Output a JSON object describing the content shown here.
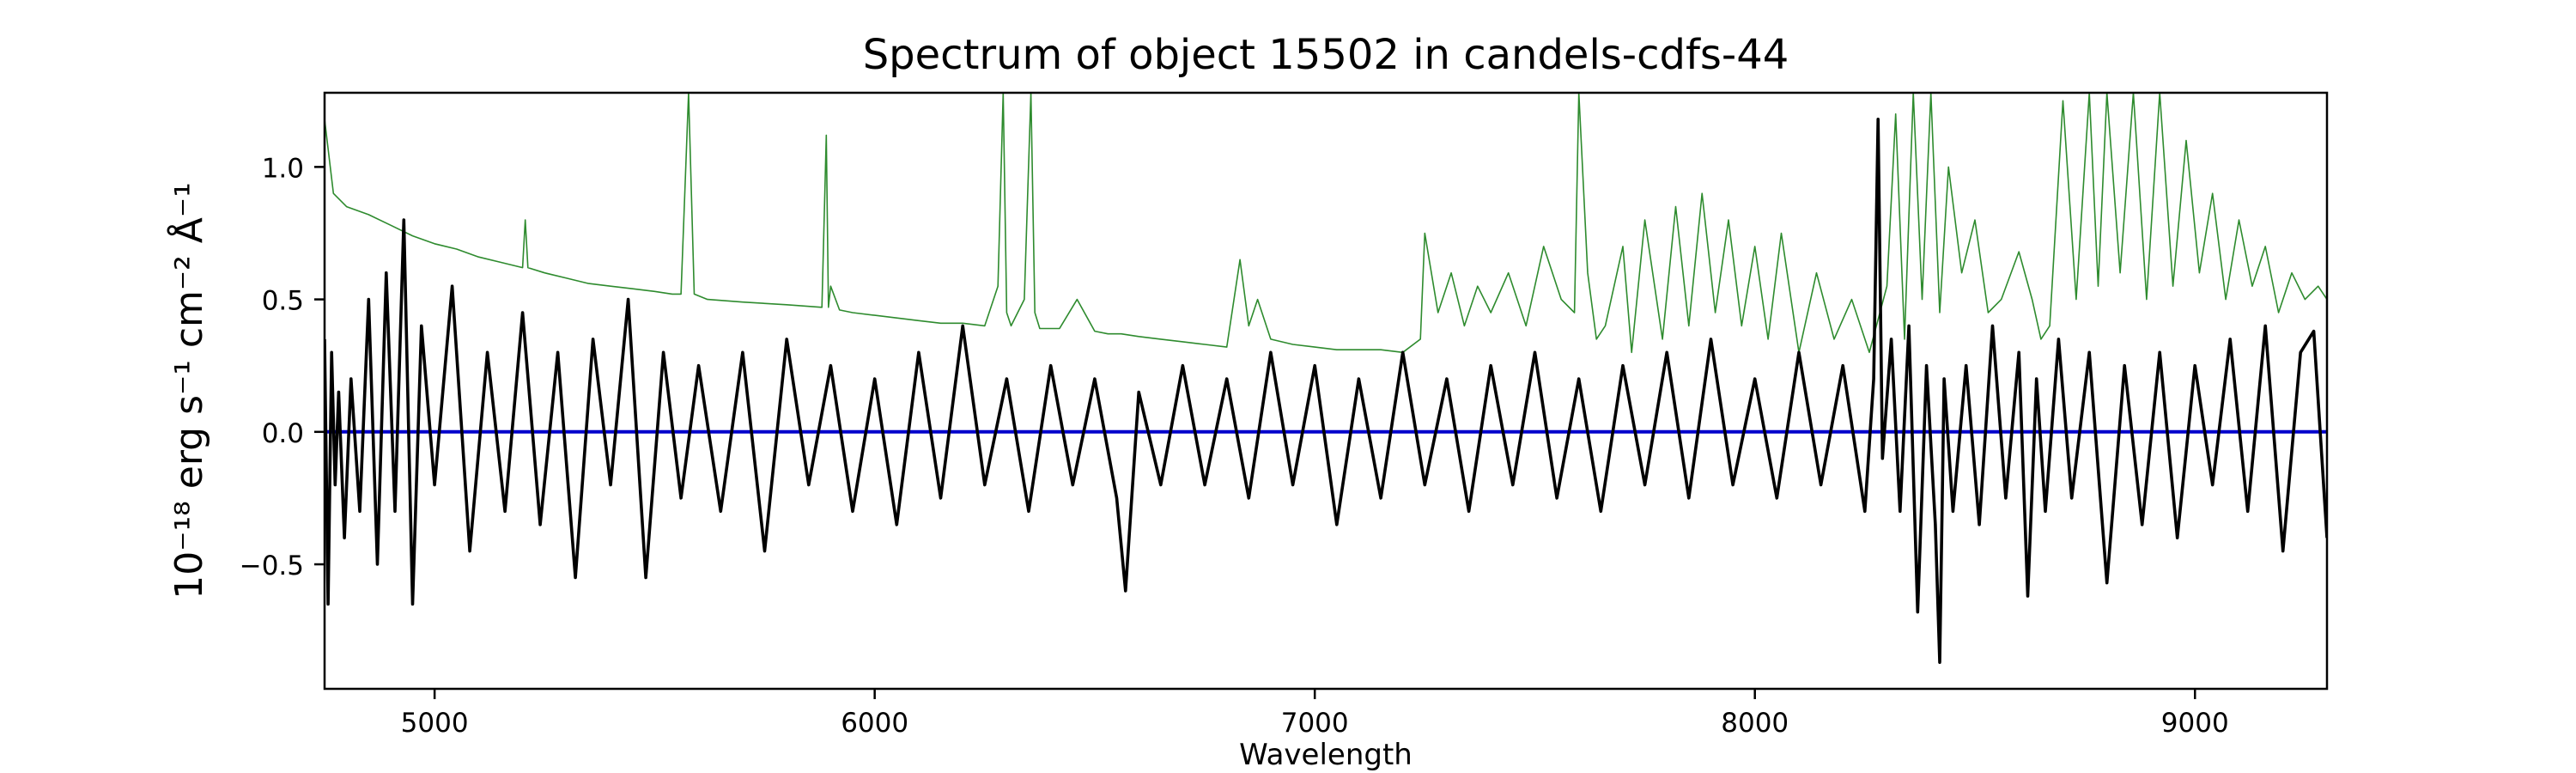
{
  "chart_data": {
    "type": "line",
    "title": "Spectrum of object 15502 in candels-cdfs-44",
    "xlabel": "Wavelength",
    "ylabel": "10⁻¹⁸ erg s⁻¹ cm⁻² Å⁻¹",
    "xlim": [
      4750,
      9300
    ],
    "ylim": [
      -0.97,
      1.28
    ],
    "x_ticks": [
      5000,
      6000,
      7000,
      8000,
      9000
    ],
    "x_tick_labels": [
      "5000",
      "6000",
      "7000",
      "8000",
      "9000"
    ],
    "y_ticks": [
      -0.5,
      0.0,
      0.5,
      1.0
    ],
    "y_tick_labels": [
      "−0.5",
      "0.0",
      "0.5",
      "1.0"
    ],
    "grid": false,
    "series": [
      {
        "role": "contamination",
        "color": "#2e8b2e",
        "x": [
          4750,
          4770,
          4800,
          4850,
          4900,
          4950,
          5000,
          5050,
          5100,
          5150,
          5200,
          5206,
          5212,
          5250,
          5300,
          5350,
          5400,
          5450,
          5500,
          5540,
          5560,
          5577,
          5590,
          5620,
          5700,
          5800,
          5880,
          5890,
          5895,
          5900,
          5920,
          5950,
          6000,
          6050,
          6100,
          6150,
          6200,
          6250,
          6280,
          6292,
          6300,
          6310,
          6340,
          6355,
          6364,
          6375,
          6420,
          6460,
          6500,
          6530,
          6560,
          6600,
          6650,
          6700,
          6750,
          6800,
          6830,
          6850,
          6870,
          6900,
          6950,
          7000,
          7050,
          7100,
          7150,
          7200,
          7240,
          7250,
          7280,
          7310,
          7340,
          7370,
          7400,
          7440,
          7480,
          7520,
          7560,
          7590,
          7600,
          7620,
          7640,
          7660,
          7700,
          7720,
          7750,
          7790,
          7820,
          7850,
          7880,
          7910,
          7940,
          7970,
          8000,
          8030,
          8060,
          8100,
          8140,
          8180,
          8220,
          8260,
          8300,
          8320,
          8340,
          8360,
          8380,
          8400,
          8420,
          8440,
          8470,
          8500,
          8530,
          8560,
          8600,
          8630,
          8650,
          8670,
          8700,
          8730,
          8760,
          8780,
          8800,
          8830,
          8860,
          8890,
          8920,
          8950,
          8980,
          9010,
          9040,
          9070,
          9100,
          9130,
          9160,
          9190,
          9220,
          9250,
          9280,
          9300
        ],
        "y": [
          1.18,
          0.9,
          0.85,
          0.82,
          0.78,
          0.74,
          0.71,
          0.69,
          0.66,
          0.64,
          0.62,
          0.8,
          0.62,
          0.6,
          0.58,
          0.56,
          0.55,
          0.54,
          0.53,
          0.52,
          0.52,
          1.28,
          0.52,
          0.5,
          0.49,
          0.48,
          0.47,
          1.12,
          0.47,
          0.55,
          0.46,
          0.45,
          0.44,
          0.43,
          0.42,
          0.41,
          0.41,
          0.4,
          0.55,
          1.28,
          0.45,
          0.4,
          0.5,
          1.28,
          0.45,
          0.39,
          0.39,
          0.5,
          0.38,
          0.37,
          0.37,
          0.36,
          0.35,
          0.34,
          0.33,
          0.32,
          0.65,
          0.4,
          0.5,
          0.35,
          0.33,
          0.32,
          0.31,
          0.31,
          0.31,
          0.3,
          0.35,
          0.75,
          0.45,
          0.6,
          0.4,
          0.55,
          0.45,
          0.6,
          0.4,
          0.7,
          0.5,
          0.45,
          1.28,
          0.6,
          0.35,
          0.4,
          0.7,
          0.3,
          0.8,
          0.35,
          0.85,
          0.4,
          0.9,
          0.45,
          0.8,
          0.4,
          0.7,
          0.35,
          0.75,
          0.3,
          0.6,
          0.35,
          0.5,
          0.3,
          0.55,
          1.2,
          0.35,
          1.28,
          0.5,
          1.28,
          0.45,
          1.0,
          0.6,
          0.8,
          0.45,
          0.5,
          0.68,
          0.5,
          0.35,
          0.4,
          1.25,
          0.5,
          1.28,
          0.55,
          1.28,
          0.6,
          1.28,
          0.5,
          1.28,
          0.55,
          1.1,
          0.6,
          0.9,
          0.5,
          0.8,
          0.55,
          0.7,
          0.45,
          0.6,
          0.5,
          0.55,
          0.5
        ]
      },
      {
        "role": "model",
        "color": "#0000cc",
        "x": [
          4750,
          9300
        ],
        "y": [
          0.0,
          0.0
        ]
      },
      {
        "role": "data",
        "color": "#000000",
        "x": [
          4750,
          4758,
          4766,
          4774,
          4782,
          4795,
          4810,
          4830,
          4850,
          4870,
          4890,
          4910,
          4930,
          4950,
          4970,
          5000,
          5040,
          5080,
          5120,
          5160,
          5200,
          5240,
          5280,
          5320,
          5360,
          5400,
          5440,
          5480,
          5520,
          5560,
          5600,
          5650,
          5700,
          5750,
          5800,
          5850,
          5900,
          5950,
          6000,
          6050,
          6100,
          6150,
          6200,
          6250,
          6300,
          6350,
          6400,
          6450,
          6500,
          6550,
          6570,
          6600,
          6650,
          6700,
          6750,
          6800,
          6850,
          6900,
          6950,
          7000,
          7050,
          7100,
          7150,
          7200,
          7250,
          7300,
          7350,
          7400,
          7450,
          7500,
          7550,
          7600,
          7650,
          7700,
          7750,
          7800,
          7850,
          7900,
          7950,
          8000,
          8050,
          8100,
          8150,
          8200,
          8250,
          8270,
          8280,
          8290,
          8310,
          8330,
          8350,
          8370,
          8390,
          8410,
          8420,
          8430,
          8450,
          8480,
          8510,
          8540,
          8570,
          8600,
          8620,
          8640,
          8660,
          8690,
          8720,
          8760,
          8800,
          8840,
          8880,
          8920,
          8960,
          9000,
          9040,
          9080,
          9120,
          9160,
          9200,
          9240,
          9270,
          9300
        ],
        "y": [
          0.35,
          -0.65,
          0.3,
          -0.2,
          0.15,
          -0.4,
          0.2,
          -0.3,
          0.5,
          -0.5,
          0.6,
          -0.3,
          0.8,
          -0.65,
          0.4,
          -0.2,
          0.55,
          -0.45,
          0.3,
          -0.3,
          0.45,
          -0.35,
          0.3,
          -0.55,
          0.35,
          -0.2,
          0.5,
          -0.55,
          0.3,
          -0.25,
          0.25,
          -0.3,
          0.3,
          -0.45,
          0.35,
          -0.2,
          0.25,
          -0.3,
          0.2,
          -0.35,
          0.3,
          -0.25,
          0.4,
          -0.2,
          0.2,
          -0.3,
          0.25,
          -0.2,
          0.2,
          -0.25,
          -0.6,
          0.15,
          -0.2,
          0.25,
          -0.2,
          0.2,
          -0.25,
          0.3,
          -0.2,
          0.25,
          -0.35,
          0.2,
          -0.25,
          0.3,
          -0.2,
          0.2,
          -0.3,
          0.25,
          -0.2,
          0.3,
          -0.25,
          0.2,
          -0.3,
          0.25,
          -0.2,
          0.3,
          -0.25,
          0.35,
          -0.2,
          0.2,
          -0.25,
          0.3,
          -0.2,
          0.25,
          -0.3,
          0.2,
          1.18,
          -0.1,
          0.35,
          -0.3,
          0.4,
          -0.68,
          0.25,
          -0.35,
          -0.87,
          0.2,
          -0.3,
          0.25,
          -0.35,
          0.4,
          -0.25,
          0.3,
          -0.62,
          0.2,
          -0.3,
          0.35,
          -0.25,
          0.3,
          -0.57,
          0.25,
          -0.35,
          0.3,
          -0.4,
          0.25,
          -0.2,
          0.35,
          -0.3,
          0.4,
          -0.45,
          0.3,
          0.38,
          -0.4
        ]
      }
    ]
  }
}
